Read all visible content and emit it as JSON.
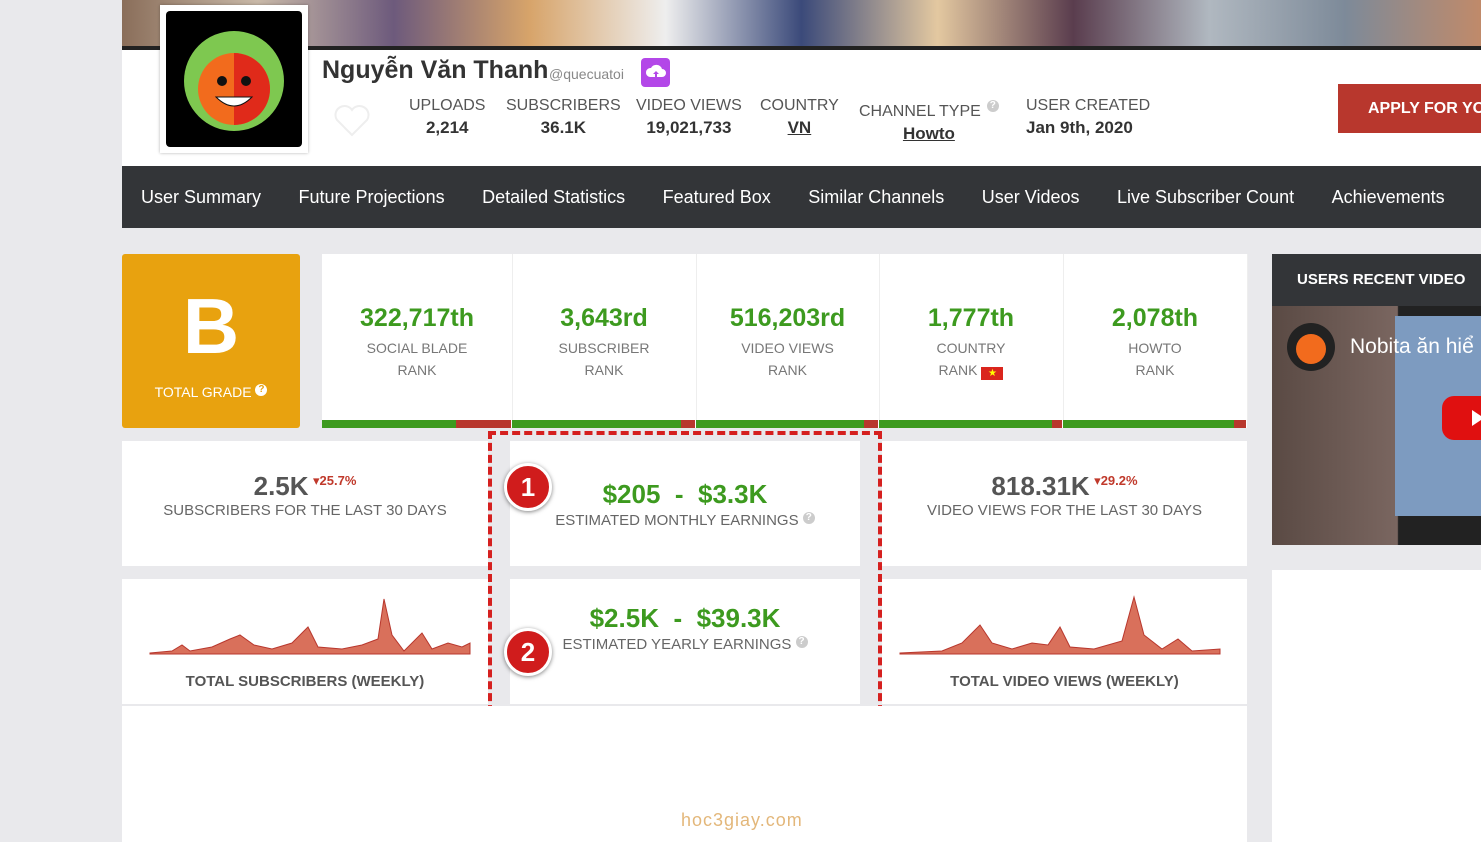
{
  "profile": {
    "name": "Nguyễn Văn Thanh",
    "handle": "@quecuatoi",
    "stats": [
      {
        "label": "UPLOADS",
        "value": "2,214"
      },
      {
        "label": "SUBSCRIBERS",
        "value": "36.1K"
      },
      {
        "label": "VIDEO VIEWS",
        "value": "19,021,733"
      },
      {
        "label": "COUNTRY",
        "value": "VN"
      },
      {
        "label": "CHANNEL TYPE",
        "value": "Howto"
      },
      {
        "label": "USER CREATED",
        "value": "Jan 9th, 2020"
      }
    ],
    "apply_button": "APPLY FOR YO"
  },
  "nav": [
    "User Summary",
    "Future Projections",
    "Detailed Statistics",
    "Featured Box",
    "Similar Channels",
    "User Videos",
    "Live Subscriber Count",
    "Achievements"
  ],
  "grade": {
    "letter": "B",
    "label": "TOTAL GRADE"
  },
  "ranks": [
    {
      "value": "322,717th",
      "label": [
        "SOCIAL BLADE",
        "RANK"
      ]
    },
    {
      "value": "3,643rd",
      "label": [
        "SUBSCRIBER",
        "RANK"
      ]
    },
    {
      "value": "516,203rd",
      "label": [
        "VIDEO VIEWS",
        "RANK"
      ]
    },
    {
      "value": "1,777th",
      "label": [
        "COUNTRY",
        "RANK"
      ]
    },
    {
      "value": "2,078th",
      "label": [
        "HOWTO",
        "RANK"
      ]
    }
  ],
  "subscribers_30d": {
    "value": "2.5K",
    "change": "25.7%",
    "label": "SUBSCRIBERS FOR THE LAST 30 DAYS"
  },
  "monthly_earnings": {
    "low": "$205",
    "separator": "-",
    "high": "$3.3K",
    "label": "ESTIMATED MONTHLY EARNINGS"
  },
  "views_30d": {
    "value": "818.31K",
    "change": "29.2%",
    "label": "VIDEO VIEWS FOR THE LAST 30 DAYS"
  },
  "subscribers_chart": {
    "label": "TOTAL SUBSCRIBERS (WEEKLY)"
  },
  "yearly_earnings": {
    "low": "$2.5K",
    "separator": "-",
    "high": "$39.3K",
    "label": "ESTIMATED YEARLY EARNINGS"
  },
  "views_chart": {
    "label": "TOTAL VIDEO VIEWS (WEEKLY)"
  },
  "annotations": [
    "1",
    "2"
  ],
  "sidebar": {
    "title": "USERS RECENT VIDEO",
    "video_title": "Nobita ăn hiể"
  },
  "watermark": "hoc3giay.com"
}
